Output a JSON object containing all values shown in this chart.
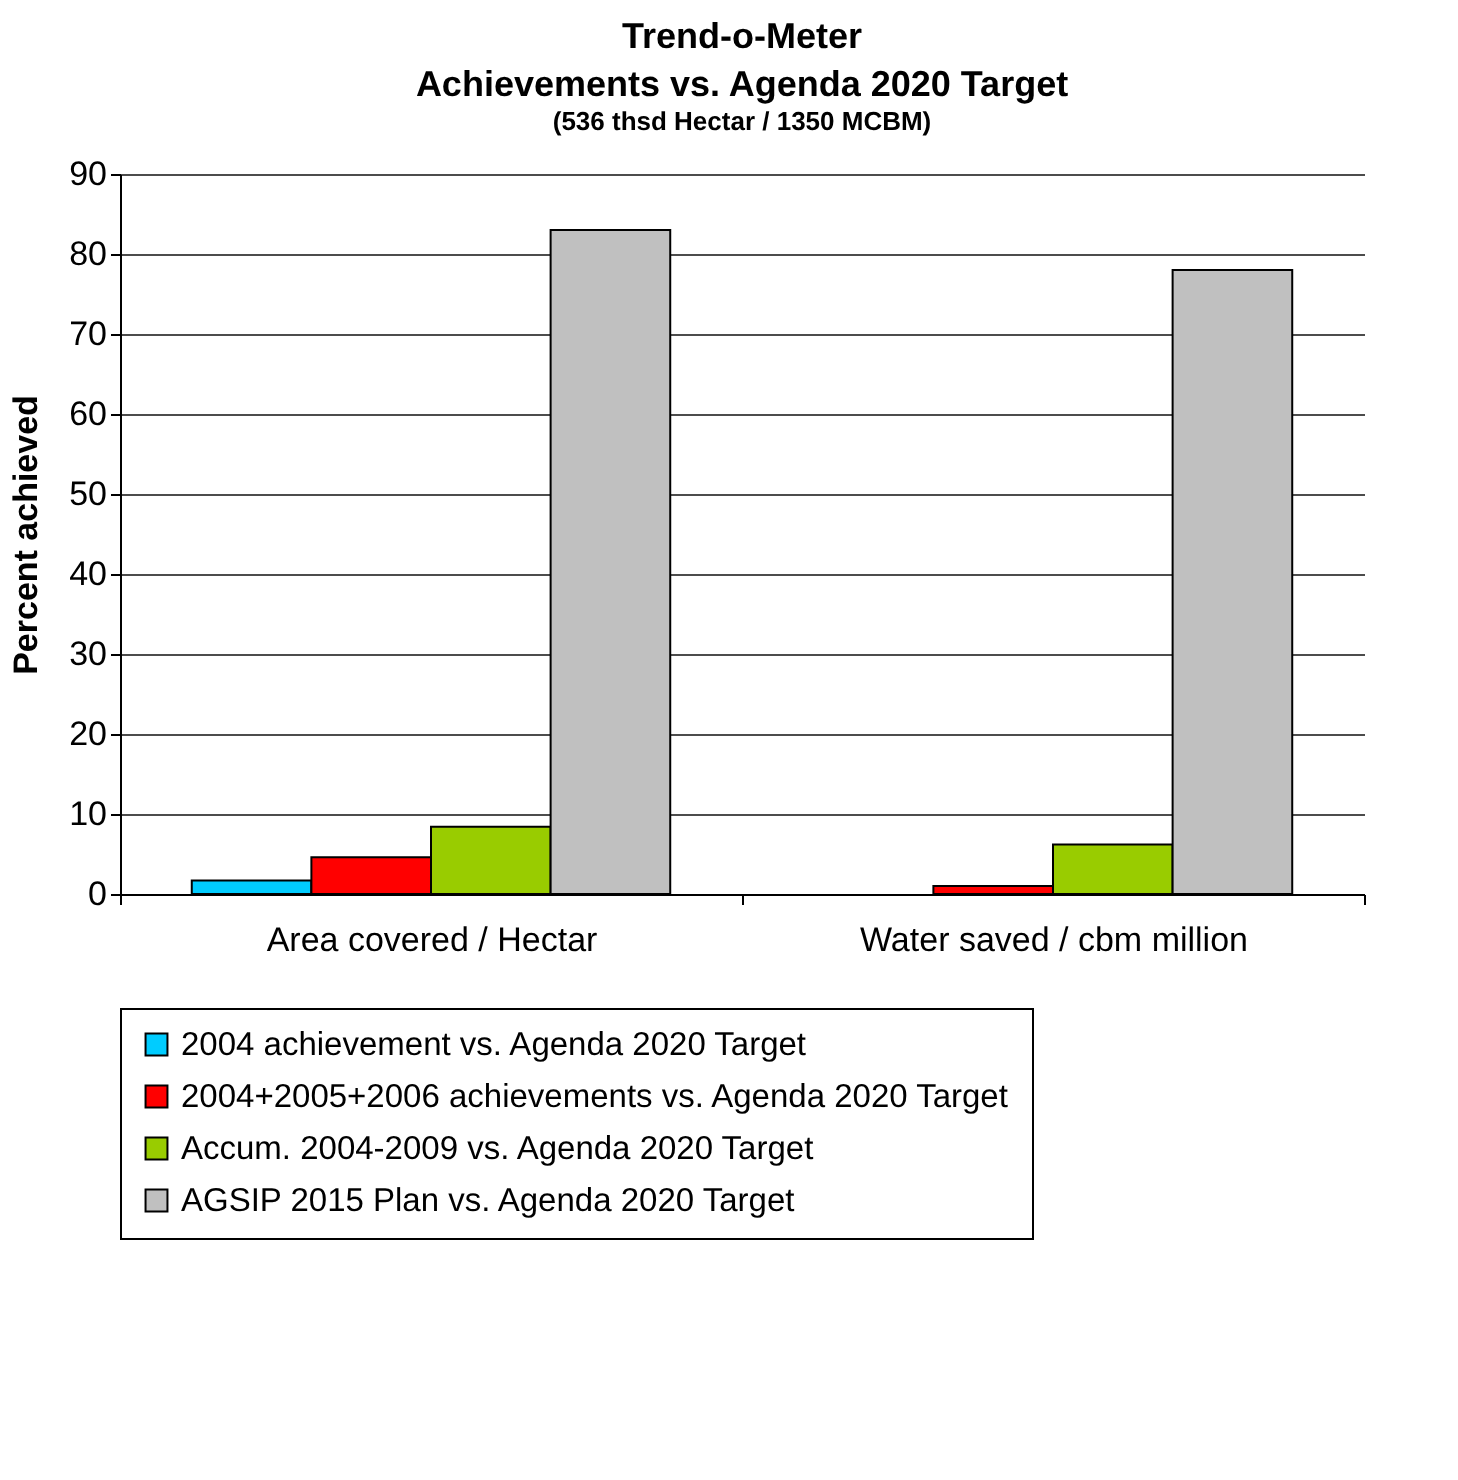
{
  "chart_data": {
    "type": "bar",
    "title": "Trend-o-Meter",
    "subtitle": "Achievements vs. Agenda 2020 Target",
    "annotations": [
      "(536 thsd Hectar / 1350 MCBM)"
    ],
    "ylabel": "Percent achieved",
    "categories": [
      "Area covered / Hectar",
      "Water saved / cbm million"
    ],
    "series": [
      {
        "name": "2004 achievement vs. Agenda 2020 Target",
        "color": "#00ccff",
        "values": [
          1.7,
          null
        ]
      },
      {
        "name": "2004+2005+2006 achievements vs. Agenda 2020 Target",
        "color": "#ff0000",
        "values": [
          4.6,
          1.0
        ]
      },
      {
        "name": "Accum. 2004-2009 vs. Agenda 2020 Target",
        "color": "#99cc00",
        "values": [
          8.4,
          6.2
        ]
      },
      {
        "name": "AGSIP 2015 Plan vs. Agenda 2020 Target",
        "color": "#c0c0c0",
        "values": [
          83,
          78
        ]
      }
    ],
    "ylim": [
      0,
      90
    ],
    "yticks": [
      0,
      10,
      20,
      30,
      40,
      50,
      60,
      70,
      80,
      90
    ],
    "grid": "y",
    "legend": "bottom"
  }
}
